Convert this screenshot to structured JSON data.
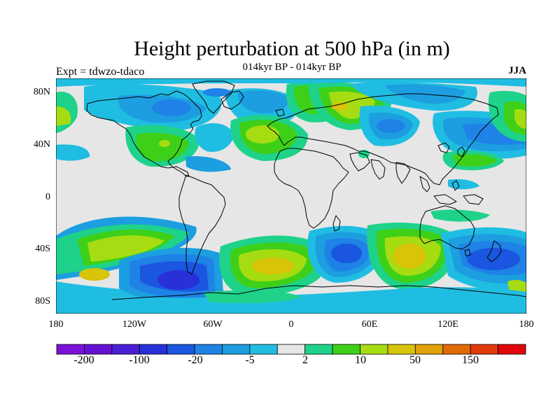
{
  "title": "Height perturbation at 500 hPa (in m)",
  "subtitle": "014kyr BP - 014kyr BP",
  "experiment_label": "Expt = tdwzo-tdaco",
  "season_label": "JJA",
  "axes": {
    "lat_ticks": [
      "80N",
      "40N",
      "0",
      "40S",
      "80S"
    ],
    "lon_ticks": [
      "180",
      "120W",
      "60W",
      "0",
      "60E",
      "120E",
      "180"
    ]
  },
  "colorbar": {
    "colors": [
      "#7a12d8",
      "#6610d6",
      "#4a1dd6",
      "#2830d8",
      "#1a56e0",
      "#1f82e6",
      "#1c9ee0",
      "#20bde2",
      "#e6e6e6",
      "#1ed28a",
      "#3ed018",
      "#a6dc12",
      "#d8c408",
      "#e0a208",
      "#e06a05",
      "#e03a0a",
      "#e0050a"
    ],
    "labels": [
      "-200",
      "-100",
      "-20",
      "-5",
      "2",
      "10",
      "50",
      "150"
    ]
  },
  "chart_data": {
    "type": "heatmap",
    "title": "Height perturbation at 500 hPa (in m)",
    "subtitle": "014kyr BP - 014kyr BP",
    "x_range": [
      -180,
      180
    ],
    "y_range": [
      -90,
      90
    ],
    "levels": [
      -200,
      -100,
      -20,
      -5,
      2,
      10,
      50,
      150
    ],
    "field_blobs": [
      {
        "lon": -150,
        "lat": -50,
        "level": 10
      },
      {
        "lon": -90,
        "lat": -55,
        "level": -20
      },
      {
        "lon": -20,
        "lat": -55,
        "level": 50
      },
      {
        "lon": 40,
        "lat": -45,
        "level": -20
      },
      {
        "lon": 95,
        "lat": -50,
        "level": 50
      },
      {
        "lon": 160,
        "lat": -45,
        "level": -20
      },
      {
        "lon": -20,
        "lat": 50,
        "level": 50
      },
      {
        "lon": -100,
        "lat": 45,
        "level": 10
      },
      {
        "lon": 45,
        "lat": 65,
        "level": 10
      },
      {
        "lon": 95,
        "lat": 50,
        "level": -5
      },
      {
        "lon": 150,
        "lat": 50,
        "level": -5
      }
    ]
  }
}
